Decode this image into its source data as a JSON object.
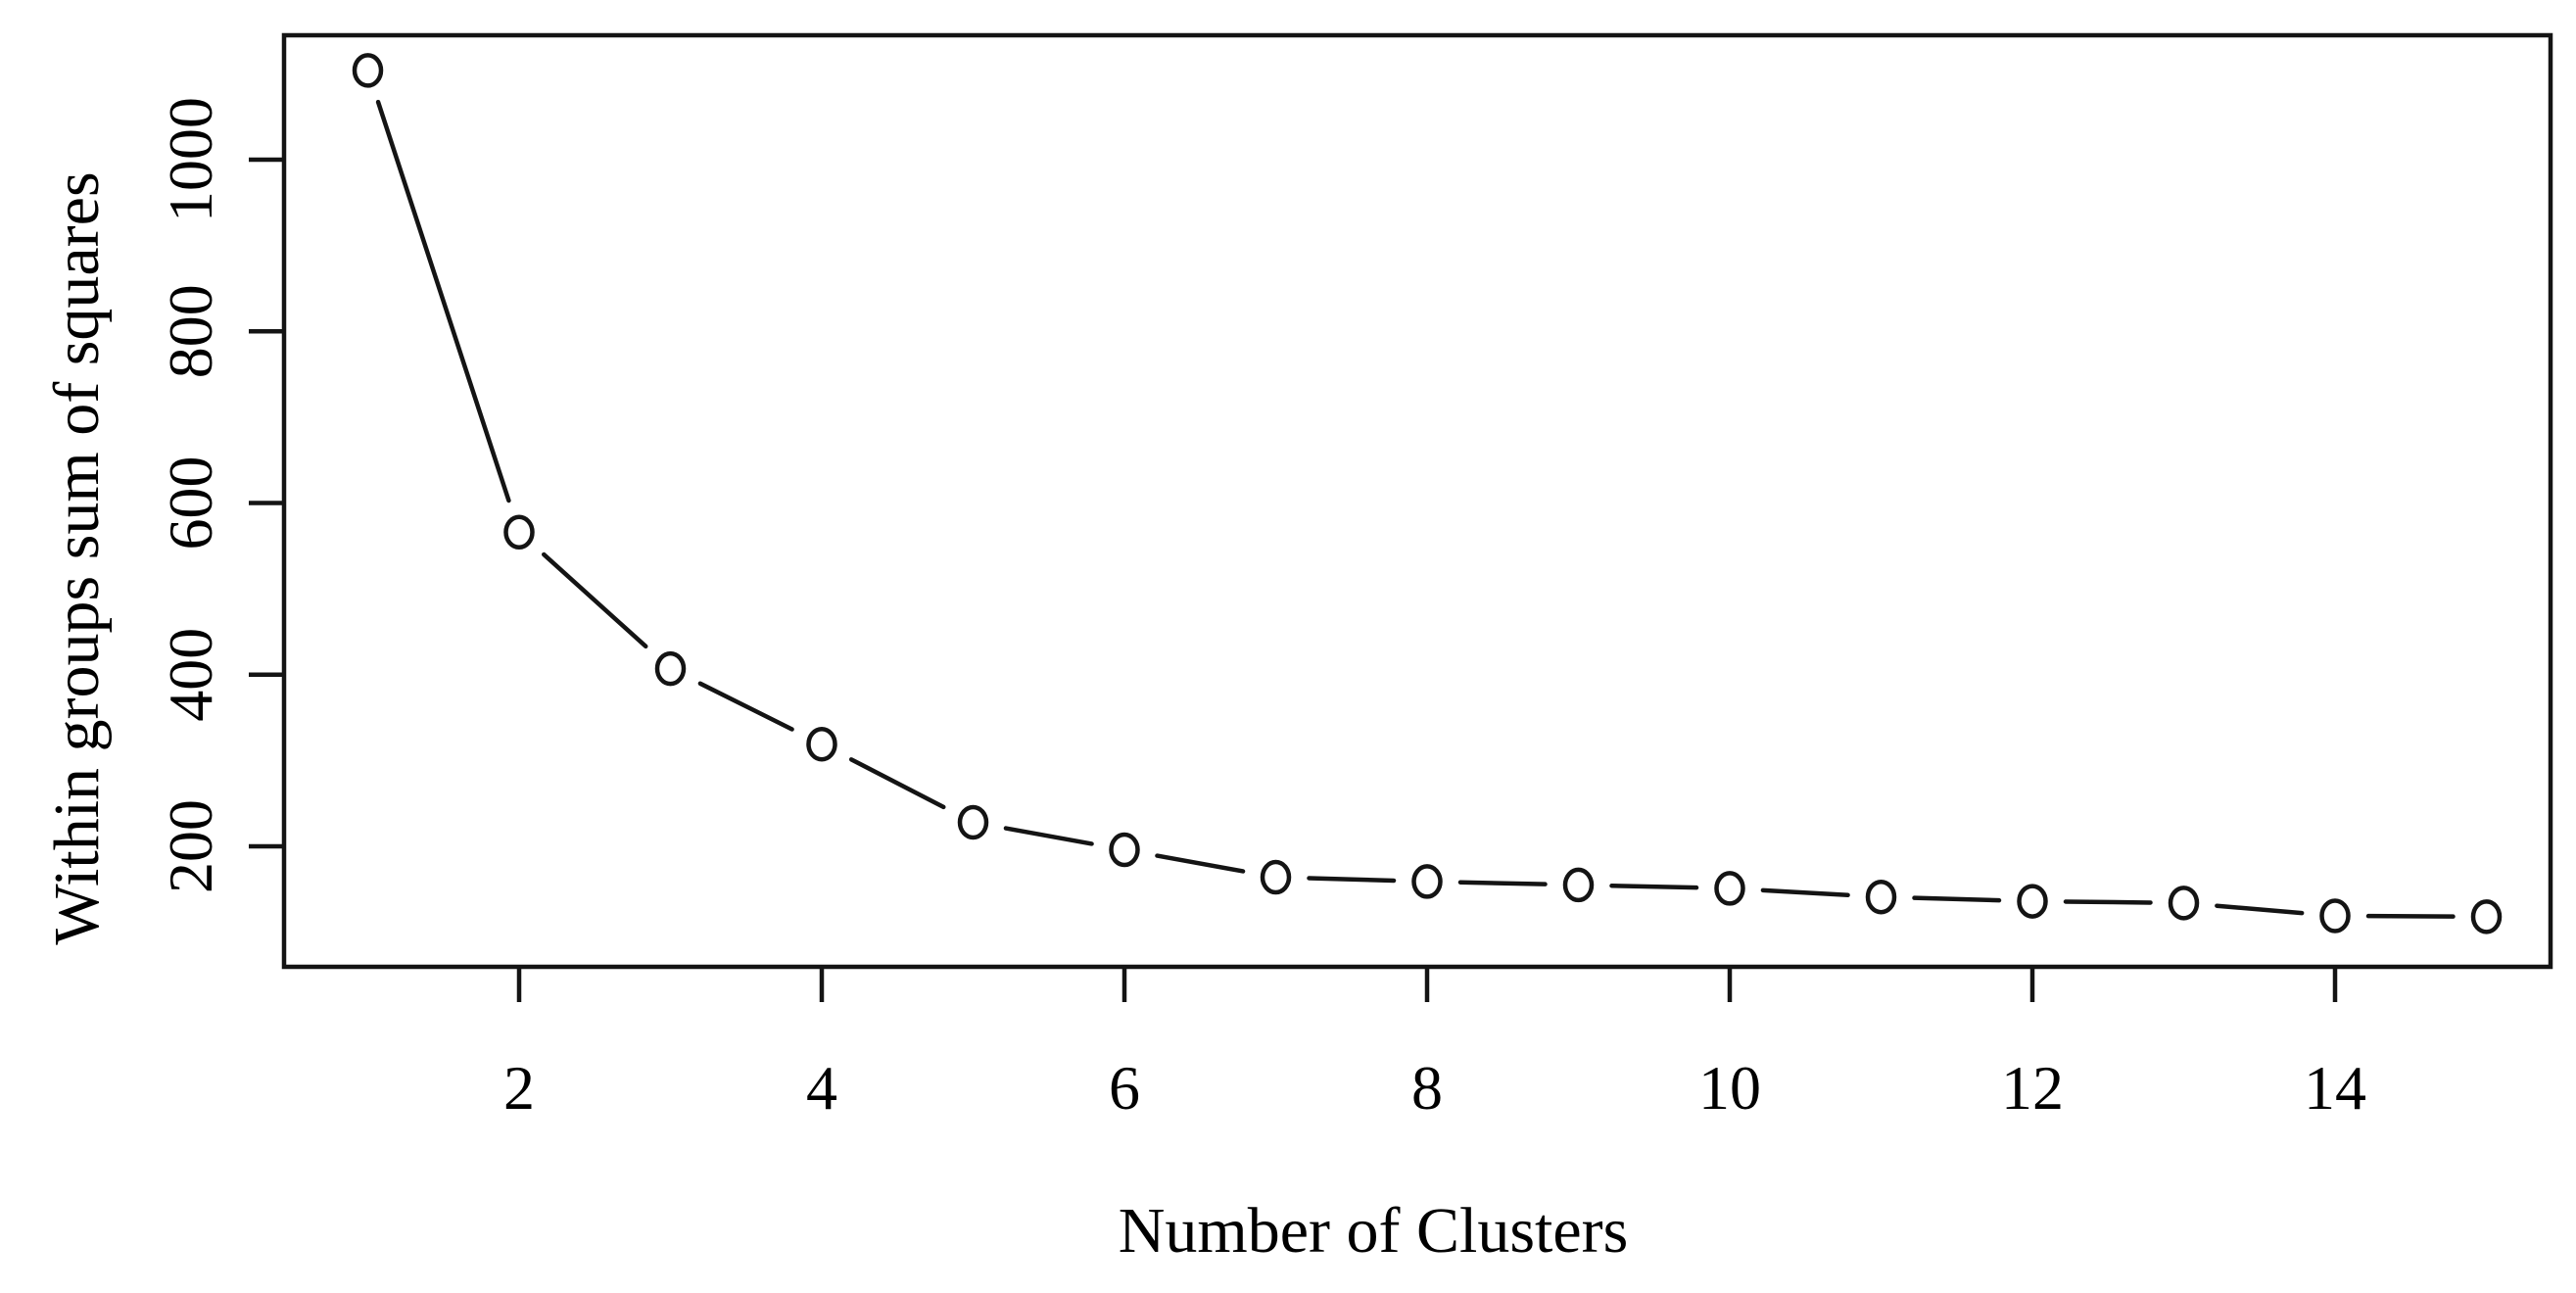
{
  "figure": {
    "background": "#ffffff",
    "ink_color": "#141414",
    "text_color": "#000000"
  },
  "chart_data": {
    "type": "line",
    "title": "",
    "xlabel": "Number of Clusters",
    "ylabel": "Within groups sum of squares",
    "x": [
      1,
      2,
      3,
      4,
      5,
      6,
      7,
      8,
      9,
      10,
      11,
      12,
      13,
      14,
      15
    ],
    "values": [
      1104,
      566,
      407,
      319,
      228,
      196,
      164,
      159,
      155,
      151,
      141,
      136,
      134,
      119,
      118
    ],
    "series_name": "Within groups sum of squares",
    "x_ticks": [
      2,
      4,
      6,
      8,
      10,
      12,
      14
    ],
    "y_ticks": [
      200,
      400,
      600,
      800,
      1000
    ],
    "xlim": [
      0.44,
      15.56
    ],
    "ylim": [
      60,
      1145
    ],
    "marker": "open-circle",
    "line_type": "points-and-segments",
    "grid": "off",
    "legend": "none",
    "frame": "box"
  }
}
